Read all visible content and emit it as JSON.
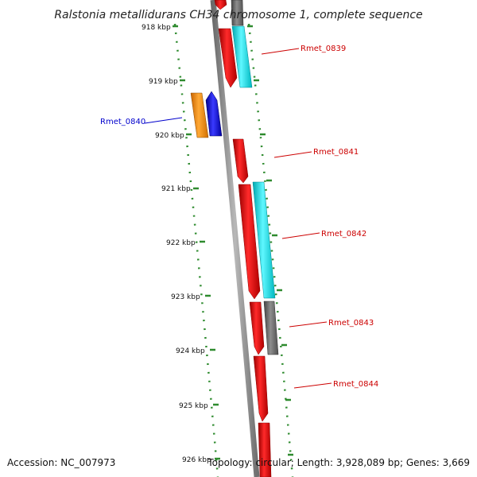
{
  "title": "Ralstonia metallidurans CH34 chromosome 1, complete sequence",
  "footer": {
    "accession": "Accession: NC_007973",
    "summary": "Topology: circular; Length: 3,928,089 bp; Genes: 3,669"
  },
  "colors": {
    "backbone": "#8c8c8c",
    "tick": "#2e8b2e",
    "red_gene": "#e8000b",
    "cyan_gene": "#00e5ee",
    "gray_gene": "#6e6e6e",
    "orange_gene": "#ff8c00",
    "blue_gene": "#0000ee",
    "label_red": "#cc0000",
    "label_blue": "#0000cc"
  },
  "ticks": [
    "918 kbp",
    "919 kbp",
    "920 kbp",
    "921 kbp",
    "922 kbp",
    "923 kbp",
    "924 kbp",
    "925 kbp",
    "926 kbp"
  ],
  "genes": [
    {
      "name": "Rmet_0839",
      "labeled": true,
      "color": "red_gene"
    },
    {
      "name": "Rmet_0840",
      "labeled": true,
      "color": "blue_gene"
    },
    {
      "name": "Rmet_0841",
      "labeled": true,
      "color": "red_gene"
    },
    {
      "name": "Rmet_0842",
      "labeled": true,
      "color": "red_gene"
    },
    {
      "name": "Rmet_0843",
      "labeled": true,
      "color": "red_gene"
    },
    {
      "name": "Rmet_0844",
      "labeled": true,
      "color": "red_gene"
    }
  ]
}
